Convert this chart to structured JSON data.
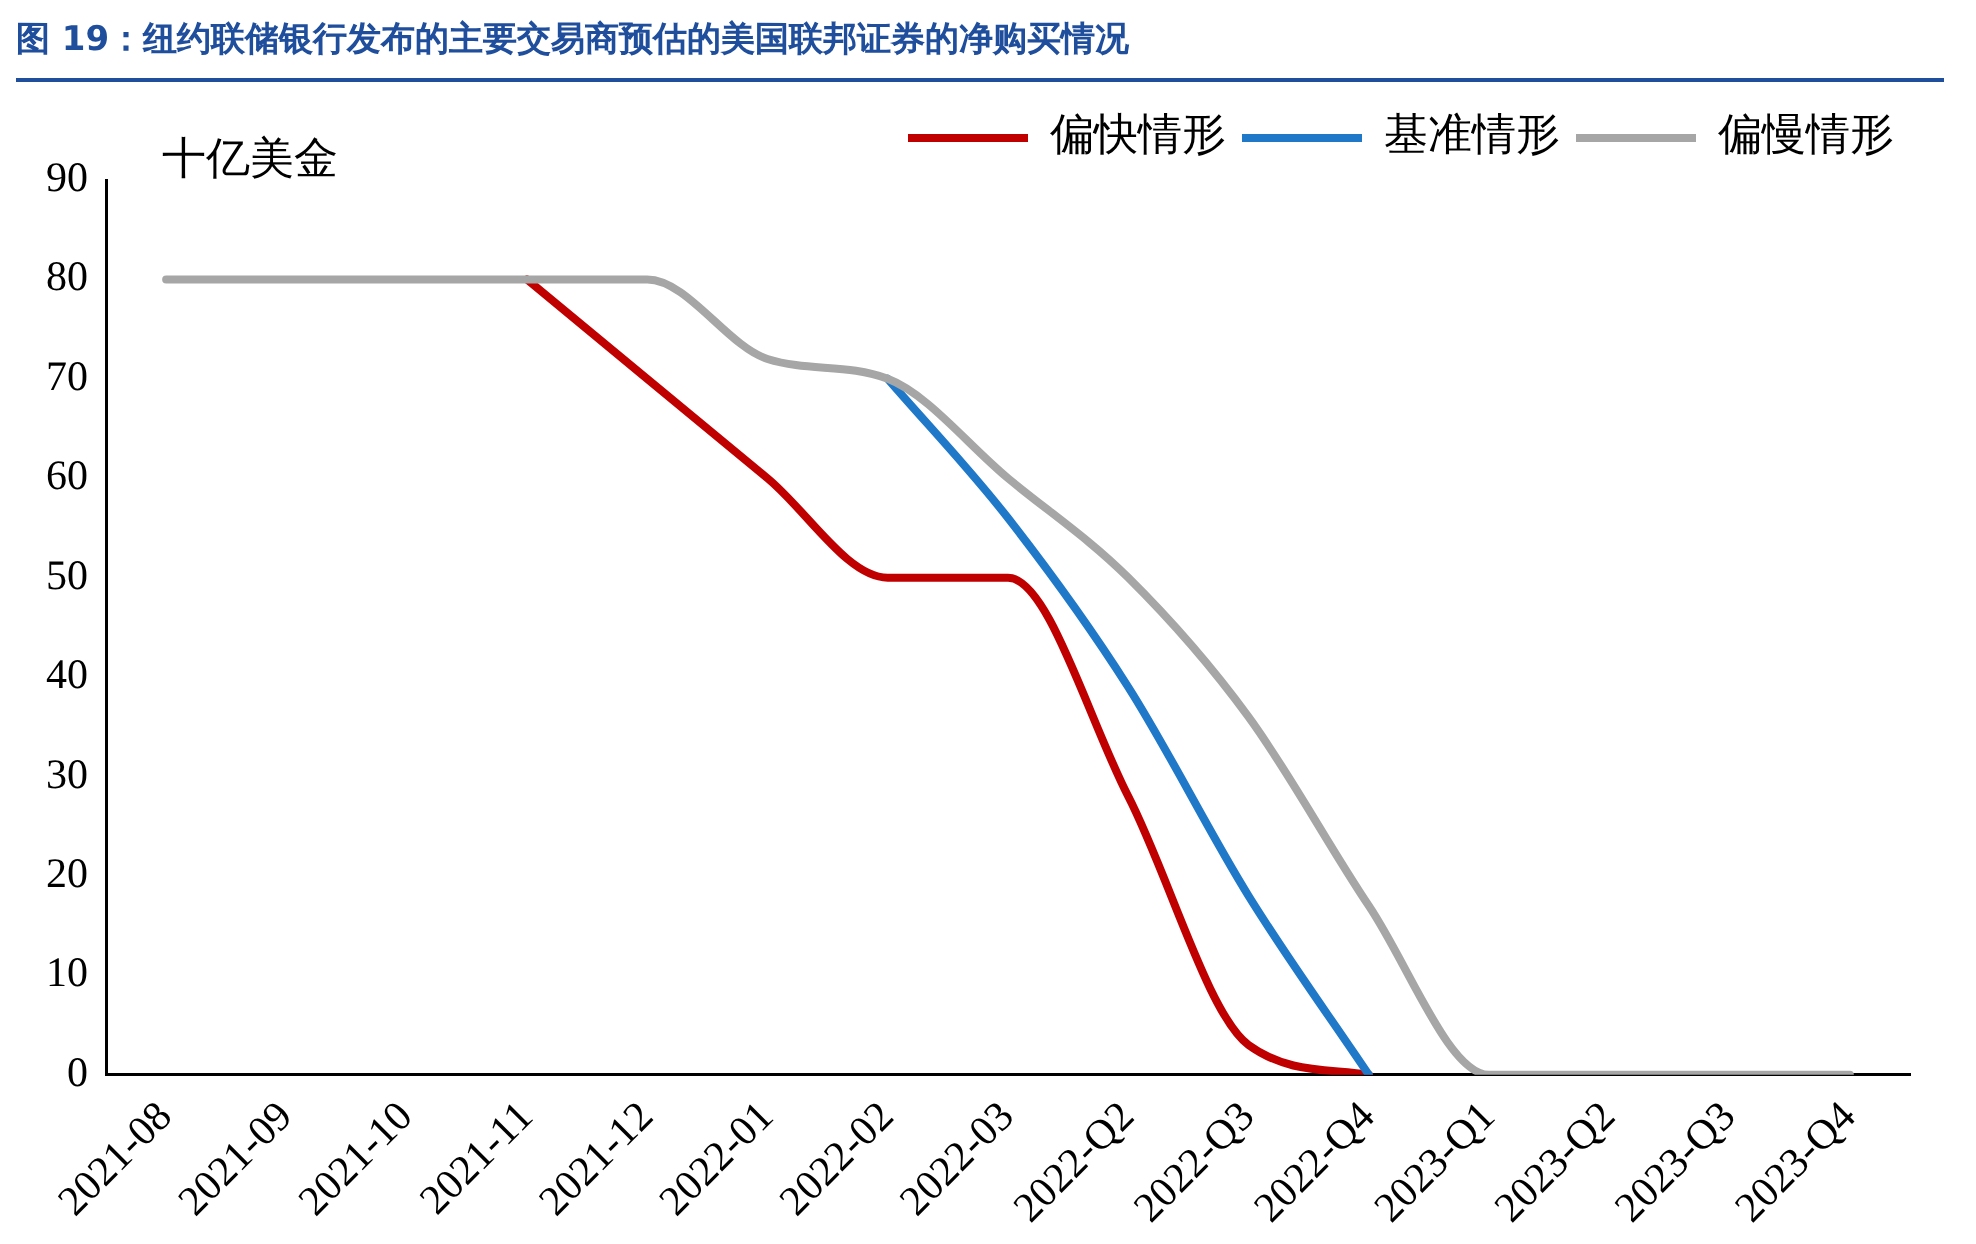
{
  "chart_data": {
    "type": "line",
    "title": "图 19：纽约联储银行发布的主要交易商预估的美国联邦证券的净购买情况",
    "ylabel": "十亿美金",
    "categories": [
      "2021-08",
      "2021-09",
      "2021-10",
      "2021-11",
      "2021-12",
      "2022-01",
      "2022-02",
      "2022-03",
      "2022-Q2",
      "2022-Q3",
      "2022-Q4",
      "2023-Q1",
      "2023-Q2",
      "2023-Q3",
      "2023-Q4"
    ],
    "series": [
      {
        "name": "偏快情形",
        "color": "#c00000",
        "values": [
          null,
          null,
          null,
          80,
          70,
          60,
          50,
          50,
          28,
          3,
          0,
          null,
          null,
          null,
          null
        ]
      },
      {
        "name": "基准情形",
        "color": "#1f78c8",
        "values": [
          null,
          null,
          null,
          null,
          null,
          null,
          70,
          56,
          39,
          18,
          0,
          null,
          null,
          null,
          null
        ]
      },
      {
        "name": "偏慢情形",
        "color": "#a6a6a6",
        "values": [
          80,
          80,
          80,
          80,
          80,
          72,
          70,
          60,
          50,
          36,
          17,
          0,
          0,
          0,
          0
        ]
      }
    ],
    "ylim": [
      0,
      90
    ],
    "yticks": [
      0,
      10,
      20,
      30,
      40,
      50,
      60,
      70,
      80,
      90
    ],
    "grid": false,
    "legend": "top",
    "marker": "none",
    "line_style": "solid"
  }
}
